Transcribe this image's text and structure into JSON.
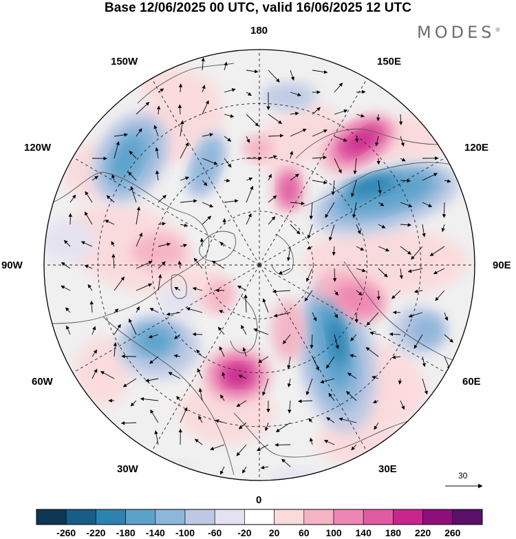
{
  "title": "Base 12/06/2025 00 UTC, valid 16/06/2025 12 UTC",
  "brand": "MODES",
  "brand_mark": "®",
  "longitude_labels": {
    "n180": "180",
    "w150": "150W",
    "e150": "150E",
    "w120": "120W",
    "e120": "120E",
    "w90": "90W",
    "e90": "90E",
    "w60": "60W",
    "e60": "60E",
    "w30": "30W",
    "e30": "30E",
    "zero": "0"
  },
  "wind_reference_value": "30",
  "colorbar": {
    "ticks": [
      "-260",
      "-220",
      "-180",
      "-140",
      "-100",
      "-60",
      "-20",
      "20",
      "60",
      "100",
      "140",
      "180",
      "220",
      "260"
    ],
    "colors": [
      "#0c3651",
      "#165d87",
      "#2c83b2",
      "#5ba2cb",
      "#8cb6da",
      "#bdc9e4",
      "#e3e2f0",
      "#ffffff",
      "#fbdadc",
      "#f5b3c4",
      "#ee86b3",
      "#e05ba3",
      "#c8268c",
      "#8e0f7b",
      "#5b0f6a"
    ]
  },
  "map_colors": {
    "ocean_neutral": "#f0f0f0",
    "coast": "#555555",
    "grid": "#222222"
  }
}
